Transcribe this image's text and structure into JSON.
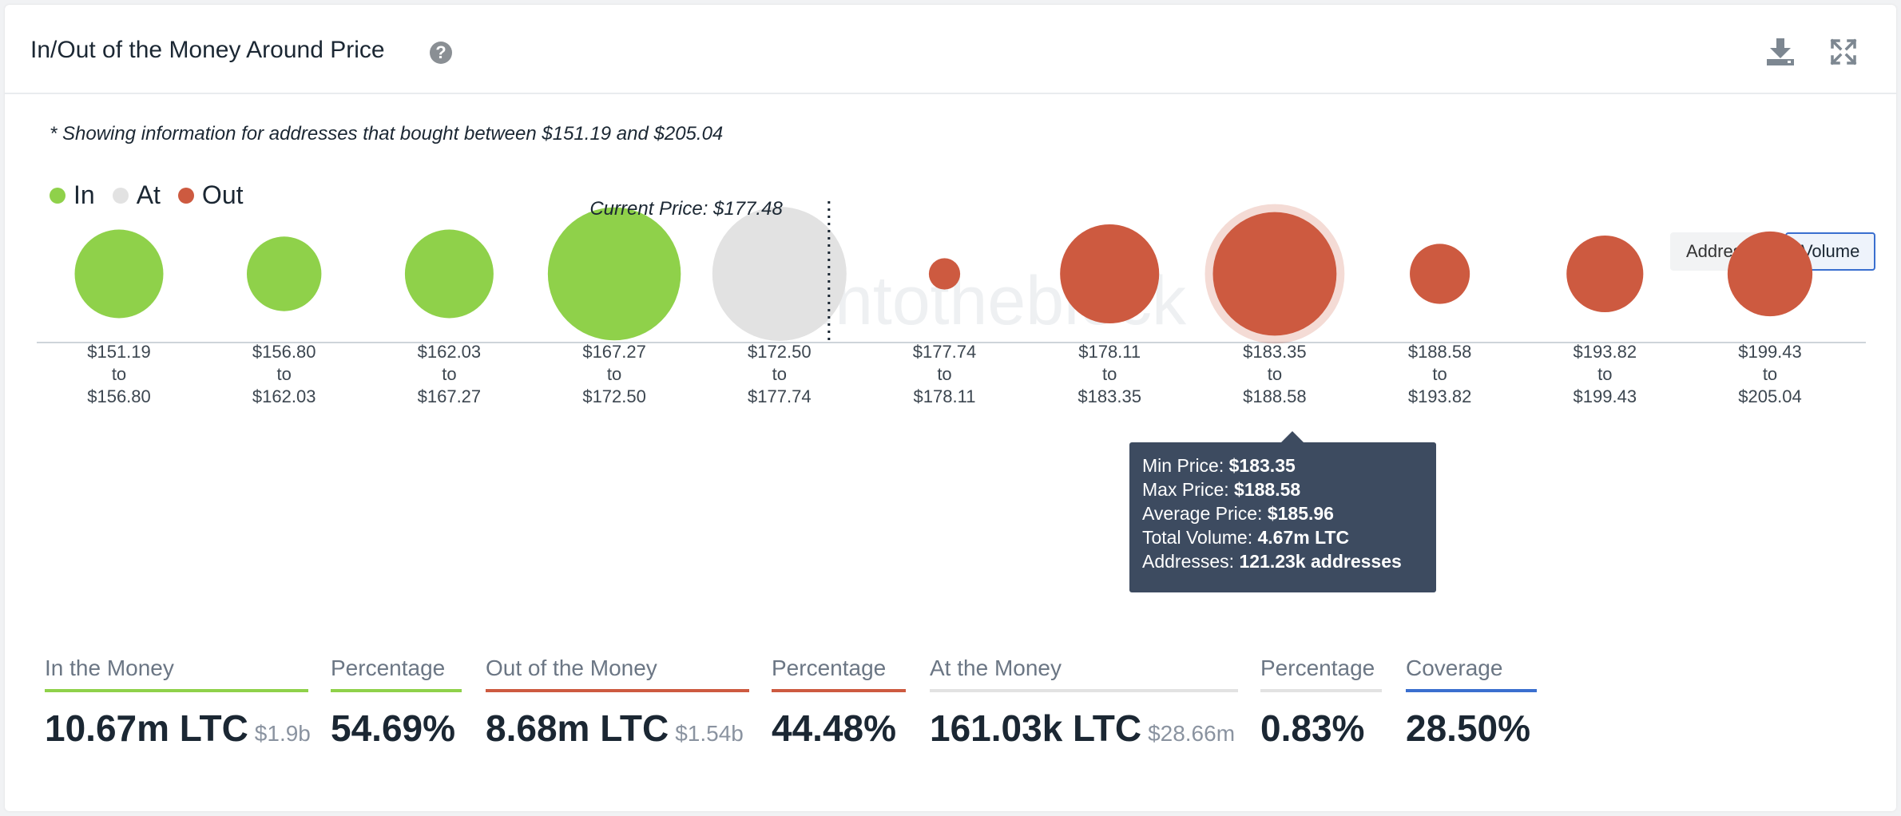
{
  "header": {
    "title": "In/Out of the Money Around Price",
    "help_icon": "question-circle-icon",
    "download_icon": "download-icon",
    "expand_icon": "expand-icon"
  },
  "note": "* Showing information for addresses that bought between $151.19 and $205.04",
  "legend": [
    {
      "label": "In",
      "color": "#8fd14a"
    },
    {
      "label": "At",
      "color": "#e2e2e2"
    },
    {
      "label": "Out",
      "color": "#cd5a40"
    }
  ],
  "toggle": {
    "options": [
      "Addresses",
      "Volume"
    ],
    "active": "Volume"
  },
  "watermark": "intotheblock",
  "chart_data": {
    "type": "bubble",
    "size_metric": "Volume (LTC)",
    "current_price_label": "Current Price: $177.48",
    "current_price": 177.48,
    "buckets": [
      {
        "range": [
          "$151.19",
          "to",
          "$156.80"
        ],
        "status": "in",
        "volume_m": 2.4
      },
      {
        "range": [
          "$156.80",
          "to",
          "$162.03"
        ],
        "status": "in",
        "volume_m": 1.7
      },
      {
        "range": [
          "$162.03",
          "to",
          "$167.27"
        ],
        "status": "in",
        "volume_m": 2.4
      },
      {
        "range": [
          "$167.27",
          "to",
          "$172.50"
        ],
        "status": "in",
        "volume_m": 5.4
      },
      {
        "range": [
          "$172.50",
          "to",
          "$177.74"
        ],
        "status": "at",
        "volume_m": 5.5
      },
      {
        "range": [
          "$177.74",
          "to",
          "$178.11"
        ],
        "status": "out",
        "volume_m": 0.3
      },
      {
        "range": [
          "$178.11",
          "to",
          "$183.35"
        ],
        "status": "out",
        "volume_m": 3.0
      },
      {
        "range": [
          "$183.35",
          "to",
          "$188.58"
        ],
        "status": "out",
        "volume_m": 4.67,
        "highlighted": true
      },
      {
        "range": [
          "$188.58",
          "to",
          "$193.82"
        ],
        "status": "out",
        "volume_m": 1.1
      },
      {
        "range": [
          "$193.82",
          "to",
          "$199.43"
        ],
        "status": "out",
        "volume_m": 1.8
      },
      {
        "range": [
          "$199.43",
          "to",
          "$205.04"
        ],
        "status": "out",
        "volume_m": 2.2
      }
    ]
  },
  "tooltip": {
    "rows": [
      {
        "label": "Min Price: ",
        "value": "$183.35"
      },
      {
        "label": "Max Price: ",
        "value": "$188.58"
      },
      {
        "label": "Average Price: ",
        "value": "$185.96"
      },
      {
        "label": "Total Volume: ",
        "value": "4.67m LTC"
      },
      {
        "label": "Addresses: ",
        "value": "121.23k addresses"
      }
    ]
  },
  "stats": [
    {
      "label": "In the Money",
      "value": "10.67m LTC",
      "sub": "$1.9b",
      "color": "#8fd14a"
    },
    {
      "label": "Percentage",
      "value": "54.69%",
      "sub": "",
      "color": "#8fd14a"
    },
    {
      "label": "Out of the Money",
      "value": "8.68m LTC",
      "sub": "$1.54b",
      "color": "#cd5a40"
    },
    {
      "label": "Percentage",
      "value": "44.48%",
      "sub": "",
      "color": "#cd5a40"
    },
    {
      "label": "At the Money",
      "value": "161.03k LTC",
      "sub": "$28.66m",
      "color": "#e2e2e2"
    },
    {
      "label": "Percentage",
      "value": "0.83%",
      "sub": "",
      "color": "#e2e2e2"
    },
    {
      "label": "Coverage",
      "value": "28.50%",
      "sub": "",
      "color": "#3a6fcf"
    }
  ]
}
